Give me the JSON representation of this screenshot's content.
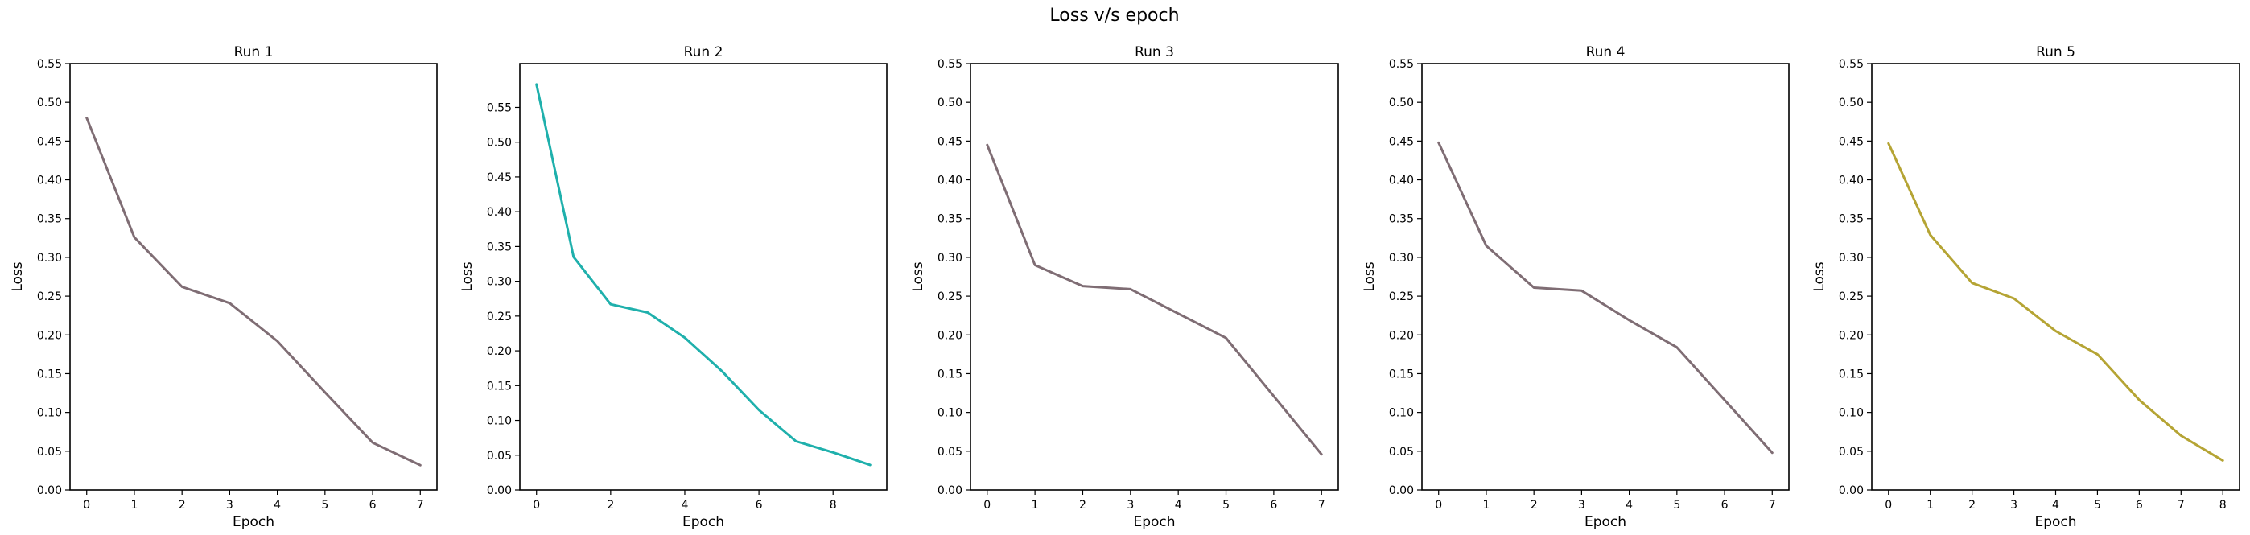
{
  "chart_data": {
    "suptitle": "Loss v/s epoch",
    "charts": [
      {
        "type": "line",
        "title": "Run 1",
        "xlabel": "Epoch",
        "ylabel": "Loss",
        "x": [
          0,
          1,
          2,
          3,
          4,
          5,
          6,
          7
        ],
        "values": [
          0.48,
          0.326,
          0.262,
          0.241,
          0.192,
          0.126,
          0.061,
          0.032
        ],
        "xlim": [
          -0.35,
          7.35
        ],
        "ylim": [
          0,
          0.55
        ],
        "xticks": [
          0,
          1,
          2,
          3,
          4,
          5,
          6,
          7
        ],
        "yticks": [
          0,
          0.05,
          0.1,
          0.15,
          0.2,
          0.25,
          0.3,
          0.35,
          0.4,
          0.45,
          0.5,
          0.55
        ],
        "color": "#7f6d74",
        "grid": false
      },
      {
        "type": "line",
        "title": "Run 2",
        "xlabel": "Epoch",
        "ylabel": "Loss",
        "x": [
          0,
          1,
          2,
          3,
          4,
          5,
          6,
          7,
          8,
          9
        ],
        "values": [
          0.583,
          0.335,
          0.267,
          0.255,
          0.219,
          0.171,
          0.115,
          0.07,
          0.054,
          0.036
        ],
        "xlim": [
          -0.45,
          9.45
        ],
        "ylim": [
          0,
          0.613
        ],
        "xticks": [
          0,
          2,
          4,
          6,
          8
        ],
        "yticks": [
          0,
          0.05,
          0.1,
          0.15,
          0.2,
          0.25,
          0.3,
          0.35,
          0.4,
          0.45,
          0.5,
          0.55
        ],
        "color": "#1fb0ac",
        "grid": false
      },
      {
        "type": "line",
        "title": "Run 3",
        "xlabel": "Epoch",
        "ylabel": "Loss",
        "x": [
          0,
          1,
          2,
          3,
          5,
          7
        ],
        "values": [
          0.445,
          0.29,
          0.263,
          0.259,
          0.196,
          0.046
        ],
        "xlim": [
          -0.35,
          7.35
        ],
        "ylim": [
          0,
          0.55
        ],
        "xticks": [
          0,
          1,
          2,
          3,
          4,
          5,
          6,
          7
        ],
        "yticks": [
          0,
          0.05,
          0.1,
          0.15,
          0.2,
          0.25,
          0.3,
          0.35,
          0.4,
          0.45,
          0.5,
          0.55
        ],
        "color": "#7f6d74",
        "grid": false
      },
      {
        "type": "line",
        "title": "Run 4",
        "xlabel": "Epoch",
        "ylabel": "Loss",
        "x": [
          0,
          1,
          2,
          3,
          4,
          5,
          6,
          7
        ],
        "values": [
          0.448,
          0.315,
          0.261,
          0.257,
          0.219,
          0.184,
          0.116,
          0.048
        ],
        "xlim": [
          -0.35,
          7.35
        ],
        "ylim": [
          0,
          0.55
        ],
        "xticks": [
          0,
          1,
          2,
          3,
          4,
          5,
          6,
          7
        ],
        "yticks": [
          0,
          0.05,
          0.1,
          0.15,
          0.2,
          0.25,
          0.3,
          0.35,
          0.4,
          0.45,
          0.5,
          0.55
        ],
        "color": "#7f6d74",
        "grid": false
      },
      {
        "type": "line",
        "title": "Run 5",
        "xlabel": "Epoch",
        "ylabel": "Loss",
        "x": [
          0,
          1,
          2,
          3,
          4,
          5,
          6,
          7,
          8
        ],
        "values": [
          0.447,
          0.329,
          0.267,
          0.247,
          0.205,
          0.175,
          0.116,
          0.07,
          0.038
        ],
        "xlim": [
          -0.4,
          8.4
        ],
        "ylim": [
          0,
          0.55
        ],
        "xticks": [
          0,
          1,
          2,
          3,
          4,
          5,
          6,
          7,
          8
        ],
        "yticks": [
          0,
          0.05,
          0.1,
          0.15,
          0.2,
          0.25,
          0.3,
          0.35,
          0.4,
          0.45,
          0.5,
          0.55
        ],
        "color": "#b5a434",
        "grid": false
      }
    ]
  }
}
